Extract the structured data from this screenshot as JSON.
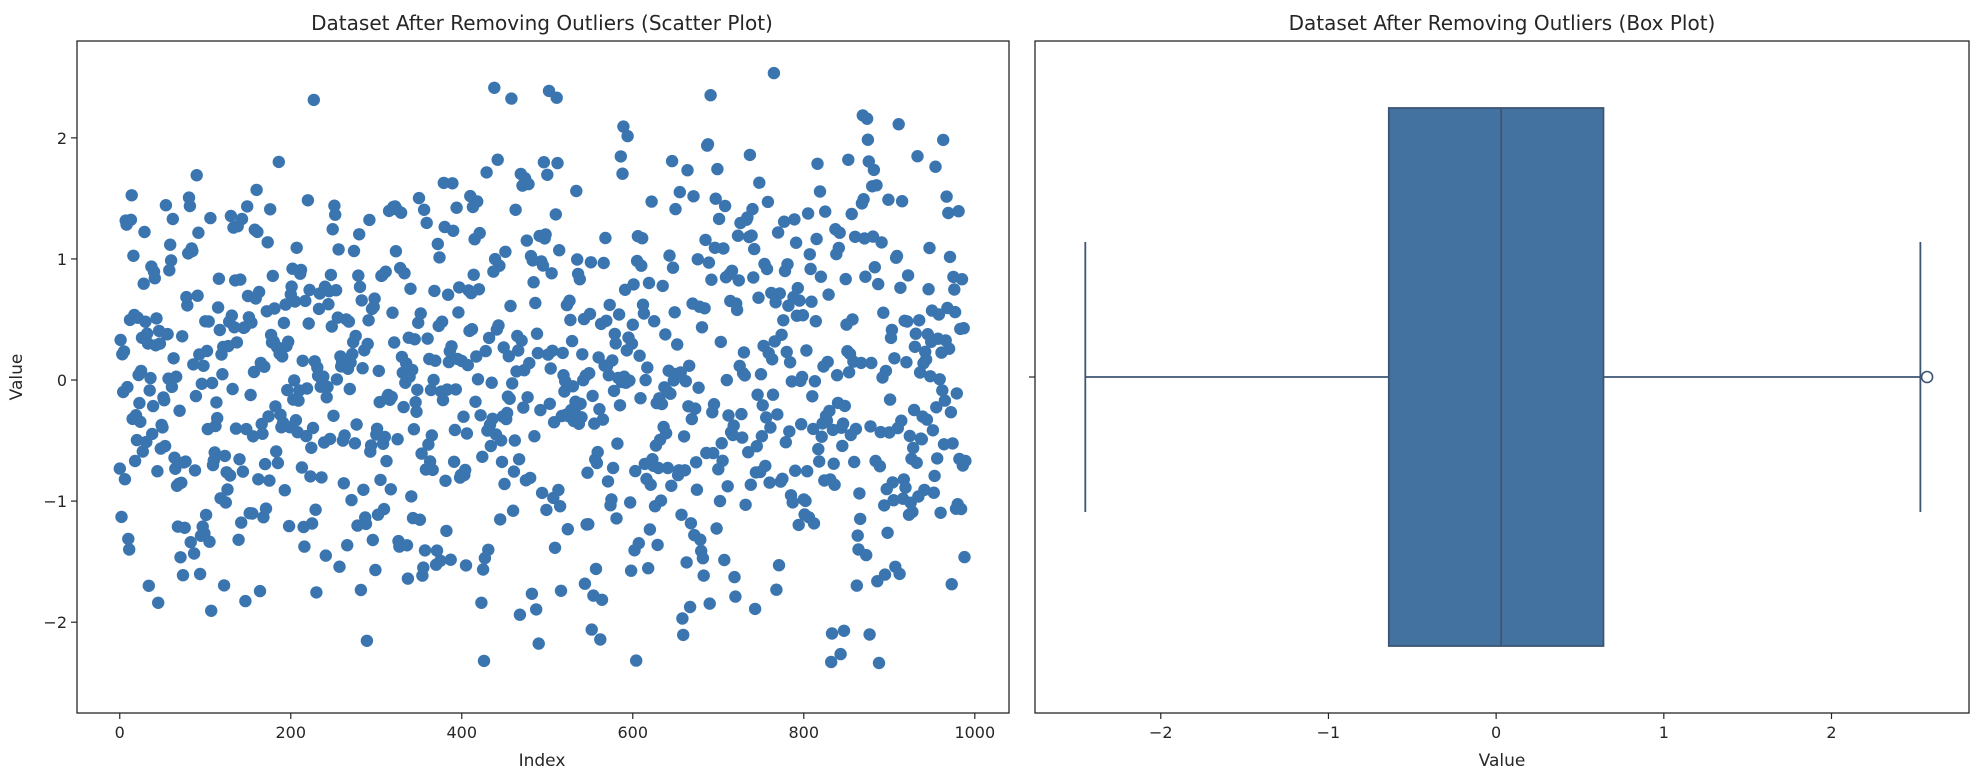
{
  "chart_data": [
    {
      "type": "scatter",
      "title": "Dataset After Removing Outliers (Scatter Plot)",
      "xlabel": "Index",
      "ylabel": "Value",
      "xlim": [
        -50,
        1040
      ],
      "ylim": [
        -2.75,
        2.8
      ],
      "xticks": [
        0,
        200,
        400,
        600,
        800,
        1000
      ],
      "yticks": [
        -2,
        -1,
        0,
        1,
        2
      ],
      "grid": false,
      "marker_color": "#3b75af",
      "n_points": 990,
      "x_range": [
        0,
        989
      ],
      "y_range": [
        -2.46,
        2.57
      ]
    },
    {
      "type": "box",
      "title": "Dataset After Removing Outliers (Box Plot)",
      "xlabel": "Value",
      "ylabel": "",
      "xlim": [
        -2.75,
        2.82
      ],
      "xticks": [
        -2,
        -1,
        0,
        1,
        2
      ],
      "grid": false,
      "box_color": "#4472a0",
      "whisker_low": -2.45,
      "q1": -0.64,
      "median": 0.03,
      "q3": 0.64,
      "whisker_high": 2.53,
      "outliers": [
        2.57
      ]
    }
  ],
  "tick_labels": {
    "scatter_x": [
      "0",
      "200",
      "400",
      "600",
      "800",
      "1000"
    ],
    "scatter_y": [
      "−2",
      "−1",
      "0",
      "1",
      "2"
    ],
    "box_x": [
      "−2",
      "−1",
      "0",
      "1",
      "2"
    ]
  }
}
